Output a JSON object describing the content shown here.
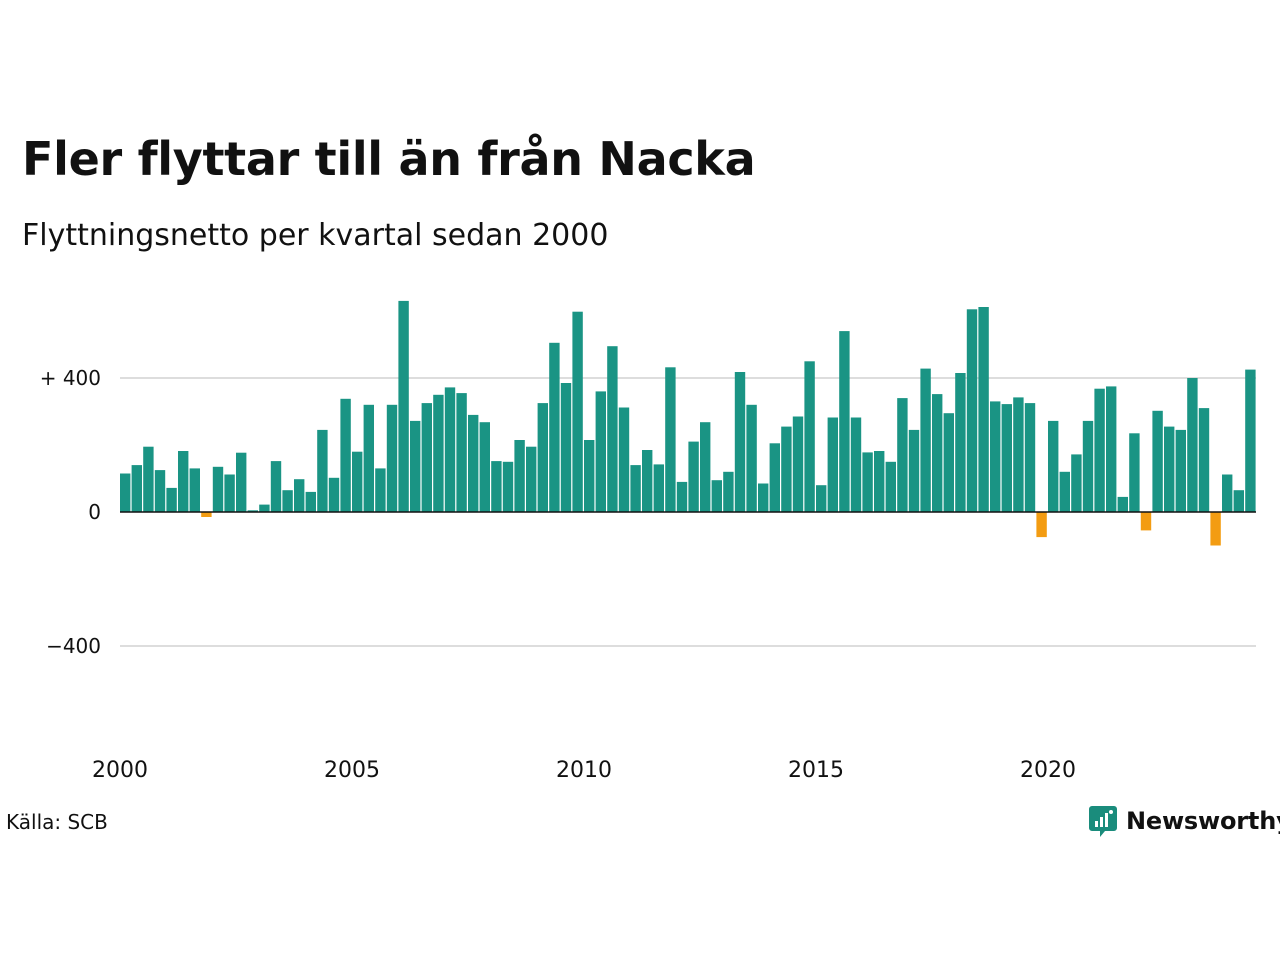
{
  "header": {
    "title": "Fler flyttar till än från Nacka",
    "subtitle": "Flyttningsnetto per kvartal sedan 2000"
  },
  "footer": {
    "source": "Källa: SCB",
    "brand": "Newsworthy"
  },
  "colors": {
    "positive": "#1a9484",
    "negative": "#f39c12",
    "grid": "#dddddd",
    "brand": "#1a8c7c"
  },
  "chart_data": {
    "type": "bar",
    "x_tick_labels": [
      "2000",
      "2005",
      "2010",
      "2015",
      "2020"
    ],
    "y_tick_labels": [
      "+ 400",
      "0",
      "−400"
    ],
    "y_ticks": [
      400,
      0,
      -400
    ],
    "ylim": [
      -650,
      640
    ],
    "grid": true,
    "start_year": 2000,
    "quarters_per_year": 4,
    "values": [
      115,
      140,
      195,
      125,
      72,
      182,
      130,
      -15,
      135,
      112,
      177,
      5,
      22,
      152,
      65,
      98,
      60,
      245,
      102,
      338,
      180,
      320,
      130,
      320,
      630,
      272,
      325,
      350,
      372,
      355,
      290,
      268,
      152,
      150,
      215,
      195,
      325,
      505,
      385,
      598,
      215,
      360,
      495,
      312,
      140,
      185,
      142,
      432,
      90,
      210,
      268,
      95,
      120,
      418,
      320,
      85,
      205,
      255,
      285,
      450,
      80,
      282,
      540,
      282,
      178,
      182,
      150,
      340,
      245,
      428,
      352,
      295,
      415,
      605,
      612,
      330,
      322,
      342,
      325,
      -75,
      272,
      120,
      172,
      272,
      368,
      375,
      45,
      235,
      -55,
      302,
      255,
      245,
      400,
      310,
      -100,
      112,
      65,
      425
    ]
  }
}
